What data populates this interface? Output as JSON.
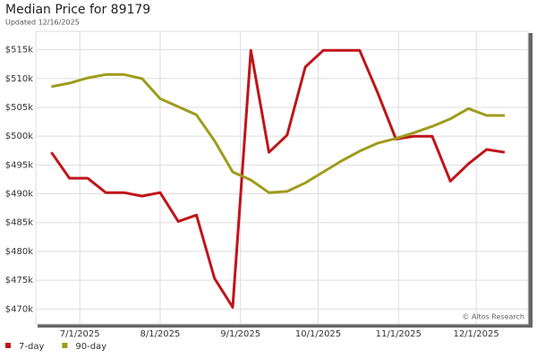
{
  "chart_data": {
    "type": "line",
    "title": "Median Price for 89179",
    "subtitle": "Updated 12/16/2025",
    "annotation": "© Altos Research",
    "x": [
      "2025-06-20",
      "2025-06-27",
      "2025-07-04",
      "2025-07-11",
      "2025-07-18",
      "2025-07-25",
      "2025-08-01",
      "2025-08-08",
      "2025-08-15",
      "2025-08-22",
      "2025-08-29",
      "2025-09-05",
      "2025-09-12",
      "2025-09-19",
      "2025-09-26",
      "2025-10-03",
      "2025-10-10",
      "2025-10-17",
      "2025-10-24",
      "2025-10-31",
      "2025-11-07",
      "2025-11-14",
      "2025-11-21",
      "2025-11-28",
      "2025-12-05",
      "2025-12-12"
    ],
    "series": [
      {
        "name": "7-day",
        "color": "#c0141a",
        "values": [
          497200,
          492700,
          492700,
          490200,
          490200,
          489600,
          490200,
          485200,
          486300,
          475300,
          470300,
          514900,
          497200,
          500200,
          512000,
          514900,
          514900,
          514900,
          507500,
          499500,
          500000,
          500000,
          492200,
          495200,
          497700,
          497200
        ]
      },
      {
        "name": "90-day",
        "color": "#a09b1c",
        "values": [
          508600,
          509200,
          510100,
          510700,
          510700,
          510000,
          506500,
          505100,
          503700,
          499200,
          493800,
          492400,
          490200,
          490400,
          491900,
          493800,
          495700,
          497400,
          498800,
          499600,
          500600,
          501700,
          503000,
          504800,
          503600,
          503600
        ]
      }
    ],
    "xlim": [
      "2025-06-14",
      "2025-12-21"
    ],
    "xticks": [
      {
        "value": "2025-07-01",
        "label": "7/1/2025"
      },
      {
        "value": "2025-08-01",
        "label": "8/1/2025"
      },
      {
        "value": "2025-09-01",
        "label": "9/1/2025"
      },
      {
        "value": "2025-10-01",
        "label": "10/1/2025"
      },
      {
        "value": "2025-11-01",
        "label": "11/1/2025"
      },
      {
        "value": "2025-12-01",
        "label": "12/1/2025"
      }
    ],
    "ylim": [
      467400,
      518200
    ],
    "yticks": [
      {
        "value": 470000,
        "label": "$470k"
      },
      {
        "value": 475000,
        "label": "$475k"
      },
      {
        "value": 480000,
        "label": "$480k"
      },
      {
        "value": 485000,
        "label": "$485k"
      },
      {
        "value": 490000,
        "label": "$490k"
      },
      {
        "value": 495000,
        "label": "$495k"
      },
      {
        "value": 500000,
        "label": "$500k"
      },
      {
        "value": 505000,
        "label": "$505k"
      },
      {
        "value": 510000,
        "label": "$510k"
      },
      {
        "value": 515000,
        "label": "$515k"
      }
    ],
    "grid": true
  }
}
